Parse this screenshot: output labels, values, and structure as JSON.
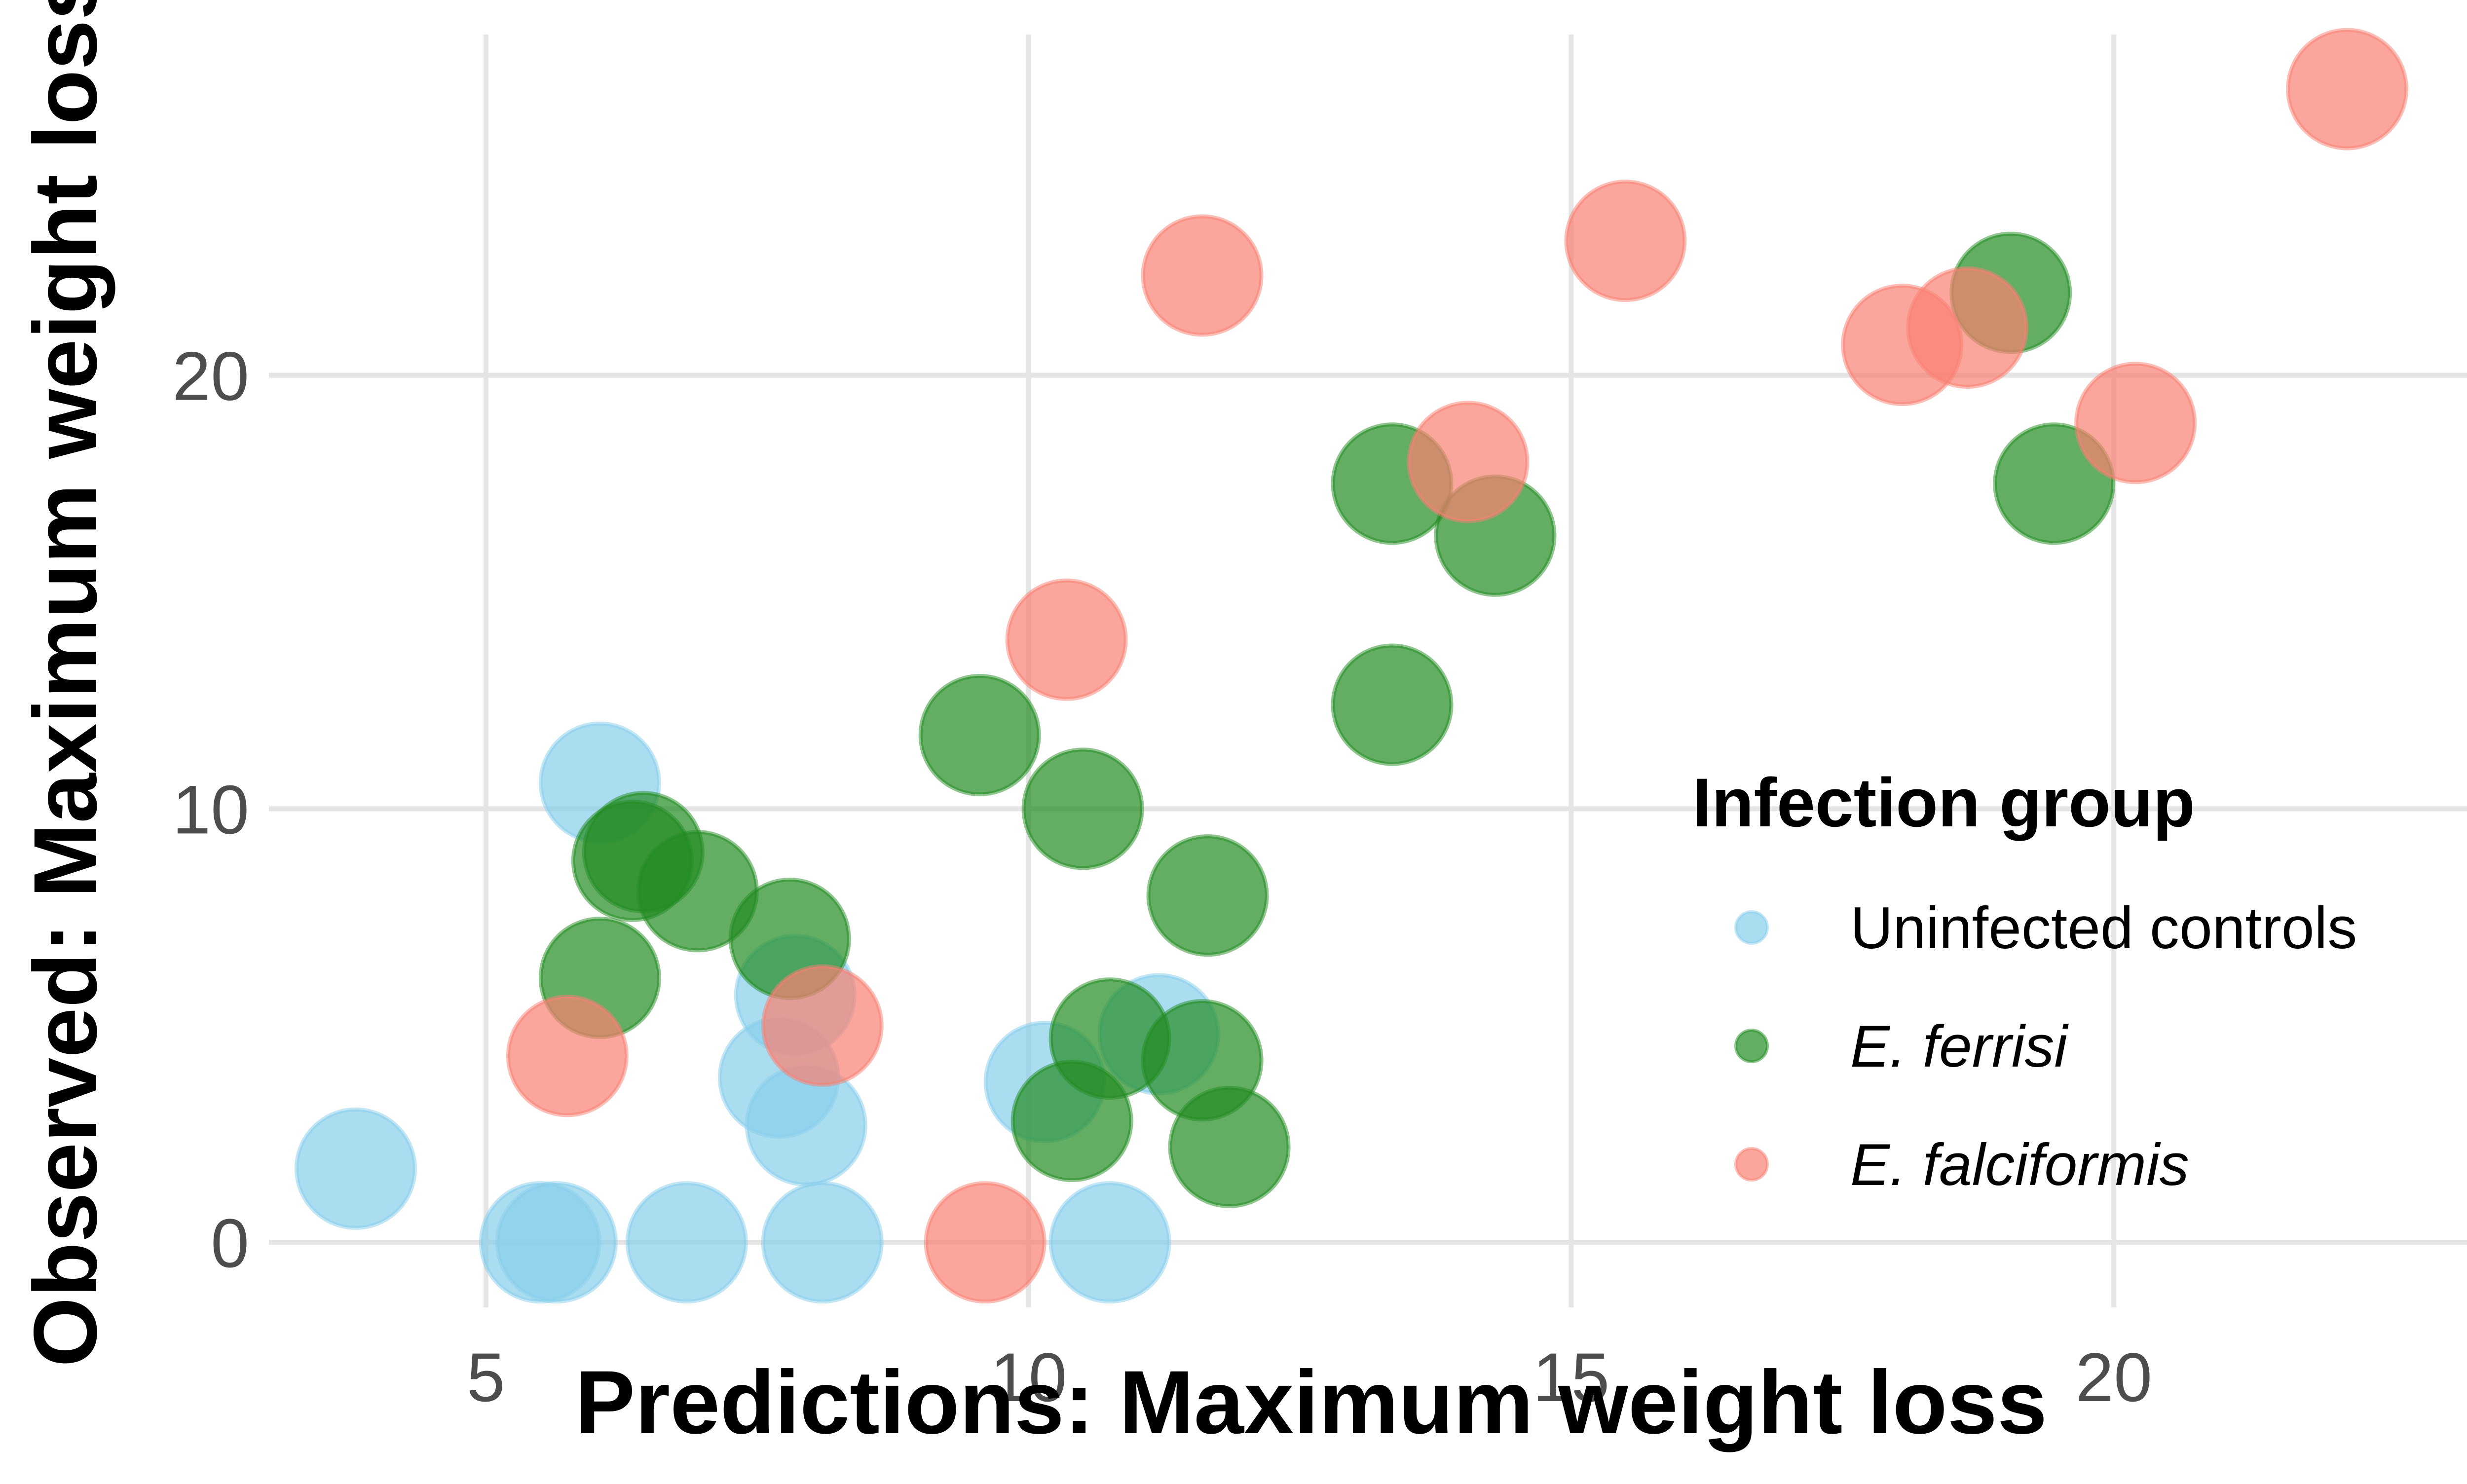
{
  "chart_data": {
    "type": "scatter",
    "title": "",
    "xlabel": "Predictions: Maximum weight loss",
    "ylabel": "Observed: Maximum weight loss",
    "xlim": [
      3,
      23.3
    ],
    "ylim": [
      -1.5,
      28.2
    ],
    "x_ticks": [
      5,
      10,
      15,
      20
    ],
    "y_ticks": [
      0,
      10,
      20
    ],
    "grid": true,
    "legend": {
      "title": "Infection group",
      "placement": "right-inside"
    },
    "series": [
      {
        "name": "Uninfected controls",
        "color": "#87CEEB",
        "italic": false,
        "points": [
          {
            "x": 3.8,
            "y": 1.7
          },
          {
            "x": 5.5,
            "y": 0.0
          },
          {
            "x": 5.65,
            "y": 0.0
          },
          {
            "x": 6.05,
            "y": 10.6
          },
          {
            "x": 6.85,
            "y": 0.0
          },
          {
            "x": 7.7,
            "y": 3.8
          },
          {
            "x": 7.85,
            "y": 5.7
          },
          {
            "x": 7.95,
            "y": 2.7
          },
          {
            "x": 8.1,
            "y": 0.0
          },
          {
            "x": 10.15,
            "y": 3.7
          },
          {
            "x": 10.75,
            "y": 0.0
          },
          {
            "x": 11.2,
            "y": 4.8
          }
        ]
      },
      {
        "name": "E. ferrisi",
        "color": "#228B22",
        "italic": true,
        "points": [
          {
            "x": 6.05,
            "y": 6.1
          },
          {
            "x": 6.35,
            "y": 8.8
          },
          {
            "x": 6.45,
            "y": 9.0
          },
          {
            "x": 6.95,
            "y": 8.1
          },
          {
            "x": 7.8,
            "y": 7.0
          },
          {
            "x": 9.55,
            "y": 11.7
          },
          {
            "x": 10.4,
            "y": 2.8
          },
          {
            "x": 10.5,
            "y": 10.0
          },
          {
            "x": 10.75,
            "y": 4.7
          },
          {
            "x": 11.6,
            "y": 4.2
          },
          {
            "x": 11.65,
            "y": 8.0
          },
          {
            "x": 11.85,
            "y": 2.2
          },
          {
            "x": 13.35,
            "y": 17.5
          },
          {
            "x": 13.35,
            "y": 12.4
          },
          {
            "x": 14.3,
            "y": 16.3
          },
          {
            "x": 19.05,
            "y": 21.9
          },
          {
            "x": 19.45,
            "y": 17.5
          }
        ]
      },
      {
        "name": "E. falciformis",
        "color": "#FA8072",
        "italic": true,
        "points": [
          {
            "x": 5.75,
            "y": 4.3
          },
          {
            "x": 8.1,
            "y": 5.0
          },
          {
            "x": 9.6,
            "y": 0.0
          },
          {
            "x": 10.35,
            "y": 13.9
          },
          {
            "x": 11.6,
            "y": 22.3
          },
          {
            "x": 14.05,
            "y": 18.0
          },
          {
            "x": 15.5,
            "y": 23.1
          },
          {
            "x": 18.05,
            "y": 20.7
          },
          {
            "x": 18.65,
            "y": 21.1
          },
          {
            "x": 20.2,
            "y": 18.9
          },
          {
            "x": 22.15,
            "y": 26.6
          }
        ]
      }
    ]
  }
}
